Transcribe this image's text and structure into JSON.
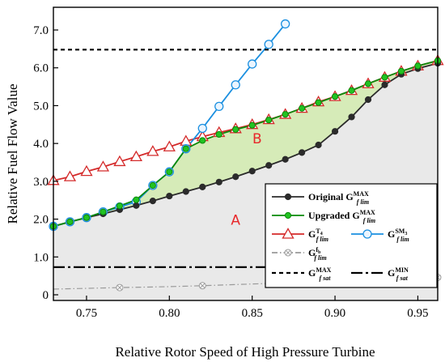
{
  "chart_data": {
    "type": "line",
    "xlabel": "Relative Rotor Speed of High Pressure Turbine",
    "ylabel": "Relative Fuel Flow Value",
    "xlim": [
      0.73,
      0.962
    ],
    "ylim": [
      -0.15,
      7.6
    ],
    "x_ticks": [
      0.75,
      0.8,
      0.85,
      0.9,
      0.95
    ],
    "x_tick_labels": [
      "0.75",
      "0.80",
      "0.85",
      "0.90",
      "0.95"
    ],
    "y_ticks": [
      0,
      1,
      2,
      3,
      4,
      5,
      6,
      7
    ],
    "y_tick_labels": [
      "0",
      "1.0",
      "2.0",
      "3.0",
      "4.0",
      "5.0",
      "6.0",
      "7.0"
    ],
    "grid": false,
    "legend_position": "bottom-right",
    "region_labels": [
      {
        "text": "A",
        "x": 0.84,
        "y": 1.85
      },
      {
        "text": "B",
        "x": 0.853,
        "y": 4.0
      }
    ],
    "series": [
      {
        "name": "Original G_flim^MAX",
        "legend_main": "Original G",
        "legend_sub": "f lim",
        "legend_sup": "MAX",
        "color": "#2b2b2b",
        "style": "solid",
        "marker": "dot",
        "x": [
          0.73,
          0.74,
          0.75,
          0.76,
          0.77,
          0.78,
          0.79,
          0.8,
          0.81,
          0.82,
          0.83,
          0.84,
          0.85,
          0.86,
          0.87,
          0.88,
          0.89,
          0.9,
          0.91,
          0.92,
          0.93,
          0.94,
          0.95,
          0.962
        ],
        "y": [
          1.81,
          1.93,
          2.04,
          2.14,
          2.25,
          2.36,
          2.48,
          2.61,
          2.73,
          2.85,
          2.98,
          3.12,
          3.27,
          3.42,
          3.58,
          3.76,
          3.96,
          4.32,
          4.7,
          5.16,
          5.55,
          5.83,
          5.98,
          6.12
        ]
      },
      {
        "name": "Upgraded G_flim^MAX",
        "legend_main": "Upgraded G",
        "legend_sub": "f lim",
        "legend_sup": "MAX",
        "color": "#0a8a0a",
        "marker_fill": "#22c322",
        "style": "solid",
        "marker": "dot",
        "x": [
          0.73,
          0.74,
          0.75,
          0.76,
          0.77,
          0.78,
          0.79,
          0.8,
          0.81,
          0.82,
          0.83,
          0.84,
          0.85,
          0.86,
          0.87,
          0.88,
          0.89,
          0.9,
          0.91,
          0.92,
          0.93,
          0.94,
          0.95,
          0.962
        ],
        "y": [
          1.81,
          1.93,
          2.04,
          2.19,
          2.35,
          2.51,
          2.89,
          3.25,
          3.86,
          4.08,
          4.24,
          4.37,
          4.48,
          4.62,
          4.77,
          4.93,
          5.08,
          5.24,
          5.4,
          5.58,
          5.75,
          5.91,
          6.05,
          6.19
        ]
      },
      {
        "name": "G_flim^T4",
        "legend_main": "G",
        "legend_sub": "f lim",
        "legend_sup": "T",
        "legend_sup_sub": "4",
        "color": "#d42a2a",
        "style": "solid",
        "marker": "triangle",
        "x": [
          0.73,
          0.74,
          0.75,
          0.76,
          0.77,
          0.78,
          0.79,
          0.8,
          0.81,
          0.82,
          0.83,
          0.84,
          0.85,
          0.86,
          0.87,
          0.88,
          0.89,
          0.9,
          0.91,
          0.92,
          0.93,
          0.94,
          0.95,
          0.962
        ],
        "y": [
          3.02,
          3.12,
          3.26,
          3.38,
          3.52,
          3.65,
          3.79,
          3.91,
          4.06,
          4.18,
          4.29,
          4.39,
          4.5,
          4.63,
          4.77,
          4.93,
          5.1,
          5.24,
          5.4,
          5.58,
          5.75,
          5.91,
          6.05,
          6.19
        ]
      },
      {
        "name": "G_flim^SM3",
        "legend_main": "G",
        "legend_sub": "f lim",
        "legend_sup": "SM",
        "legend_sup_sub": "3",
        "color": "#1a8fe0",
        "style": "solid",
        "marker": "circle-open",
        "x": [
          0.73,
          0.74,
          0.75,
          0.76,
          0.77,
          0.78,
          0.79,
          0.8,
          0.81,
          0.82,
          0.83,
          0.84,
          0.85,
          0.86,
          0.87
        ],
        "y": [
          1.81,
          1.93,
          2.04,
          2.19,
          2.32,
          2.46,
          2.89,
          3.25,
          3.86,
          4.4,
          4.98,
          5.55,
          6.1,
          6.62,
          7.16
        ]
      },
      {
        "name": "G_flim^fb",
        "legend_main": "G",
        "legend_sub": "f lim",
        "legend_sup": "f",
        "legend_sup_sub": "b",
        "color": "#9a9a9a",
        "style": "dashdot",
        "marker": "circle-x",
        "x": [
          0.73,
          0.77,
          0.8,
          0.82,
          0.84,
          0.86,
          0.88,
          0.91,
          0.93,
          0.962
        ],
        "y": [
          0.15,
          0.19,
          0.215,
          0.24,
          0.27,
          0.3,
          0.33,
          0.37,
          0.4,
          0.46
        ],
        "marker_x": [
          0.77,
          0.82,
          0.86,
          0.91,
          0.93,
          0.962
        ]
      },
      {
        "name": "G_fsat^MAX",
        "legend_main": "G",
        "legend_sub": "f sat",
        "legend_sup": "MAX",
        "color": "#000000",
        "style": "dash",
        "marker": "none",
        "value": 6.48
      },
      {
        "name": "G_fsat^MIN",
        "legend_main": "G",
        "legend_sub": "f sat",
        "legend_sup": "MIN",
        "color": "#000000",
        "style": "longdashdot",
        "marker": "none",
        "value": 0.73
      }
    ]
  }
}
